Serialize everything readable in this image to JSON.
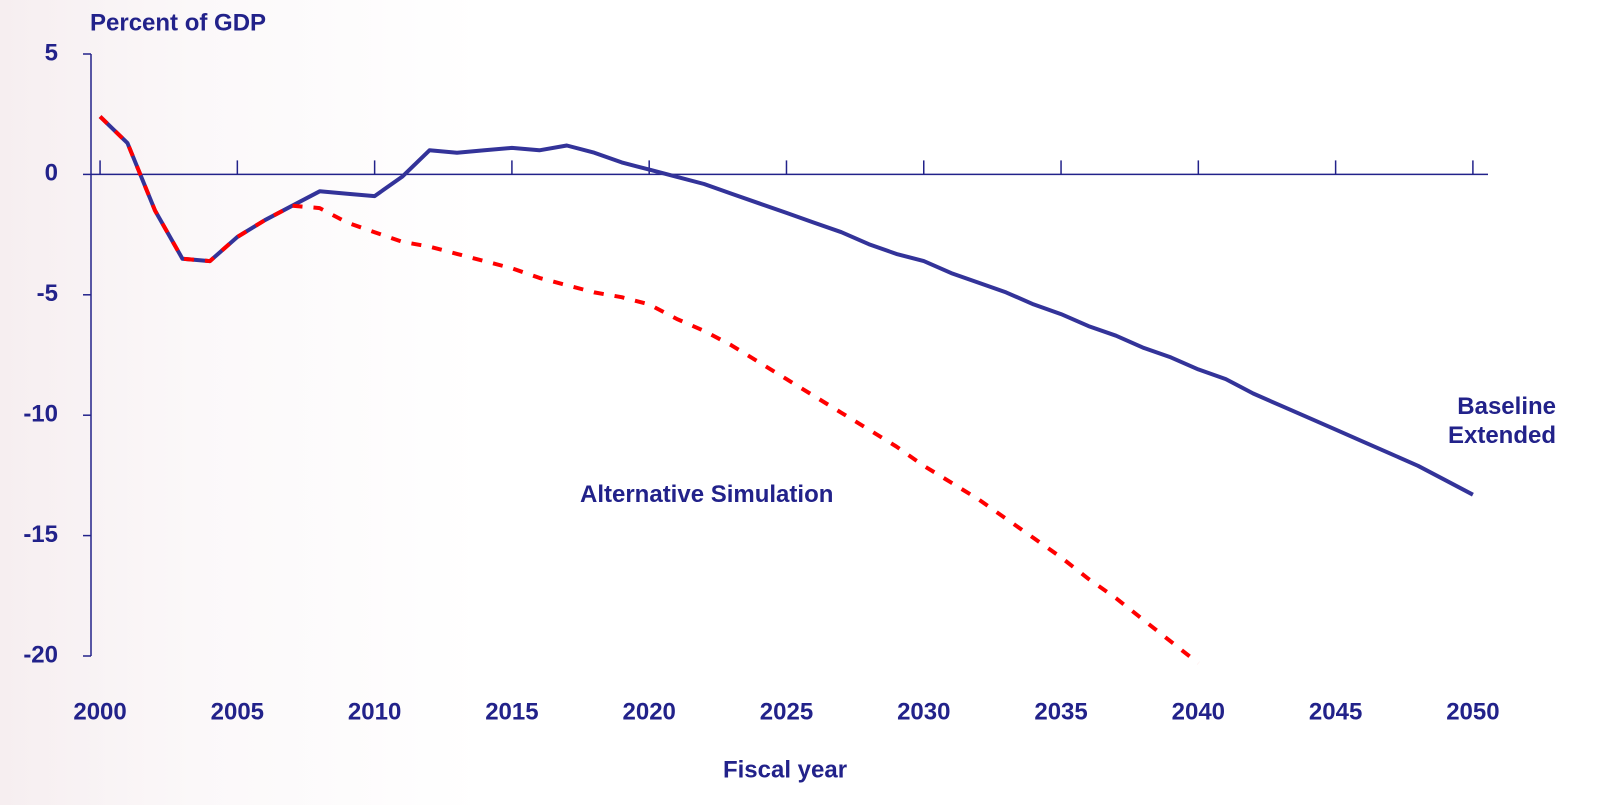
{
  "chart_data": {
    "type": "line",
    "y_axis_label": "Percent of GDP",
    "x_axis_label": "Fiscal year",
    "x": [
      2000,
      2001,
      2002,
      2003,
      2004,
      2005,
      2006,
      2007,
      2008,
      2009,
      2010,
      2011,
      2012,
      2013,
      2014,
      2015,
      2016,
      2017,
      2018,
      2019,
      2020,
      2021,
      2022,
      2023,
      2024,
      2025,
      2026,
      2027,
      2028,
      2029,
      2030,
      2031,
      2032,
      2033,
      2034,
      2035,
      2036,
      2037,
      2038,
      2039,
      2040,
      2041,
      2042,
      2043,
      2044,
      2045,
      2046,
      2047,
      2048,
      2049,
      2050
    ],
    "series": [
      {
        "name": "Baseline Extended",
        "color": "#333399",
        "dash": false,
        "values": [
          2.4,
          1.3,
          -1.5,
          -3.5,
          -3.6,
          -2.6,
          -1.9,
          -1.3,
          -0.7,
          -0.8,
          -0.9,
          -0.1,
          1.0,
          0.9,
          1.0,
          1.1,
          1.0,
          1.2,
          0.9,
          0.5,
          0.2,
          -0.1,
          -0.4,
          -0.8,
          -1.2,
          -1.6,
          -2.0,
          -2.4,
          -2.9,
          -3.3,
          -3.6,
          -4.1,
          -4.5,
          -4.9,
          -5.4,
          -5.8,
          -6.3,
          -6.7,
          -7.2,
          -7.6,
          -8.1,
          -8.5,
          -9.1,
          -9.6,
          -10.1,
          -10.6,
          -11.1,
          -11.6,
          -12.1,
          -12.7,
          -13.3
        ]
      },
      {
        "name": "Alternative Simulation",
        "color": "#ff0000",
        "dash": true,
        "values": [
          2.4,
          1.3,
          -1.5,
          -3.5,
          -3.6,
          -2.6,
          -1.9,
          -1.3,
          -1.4,
          -2.0,
          -2.4,
          -2.8,
          -3.0,
          -3.3,
          -3.6,
          -3.9,
          -4.3,
          -4.6,
          -4.9,
          -5.1,
          -5.4,
          -6.0,
          -6.5,
          -7.1,
          -7.8,
          -8.5,
          -9.2,
          -9.9,
          -10.6,
          -11.3,
          -12.1,
          -12.8,
          -13.5,
          -14.3,
          -15.1,
          -15.9,
          -16.8,
          -17.6,
          -18.5,
          -19.4,
          -20.3,
          null,
          null,
          null,
          null,
          null,
          null,
          null,
          null,
          null,
          null
        ]
      }
    ],
    "xlim": [
      1999.67,
      2050.55
    ],
    "xticks": [
      2000,
      2005,
      2010,
      2015,
      2020,
      2025,
      2030,
      2035,
      2040,
      2045,
      2050
    ],
    "ylim": [
      -20,
      5
    ],
    "yticks": [
      5,
      0,
      -5,
      -10,
      -15,
      -20
    ]
  }
}
